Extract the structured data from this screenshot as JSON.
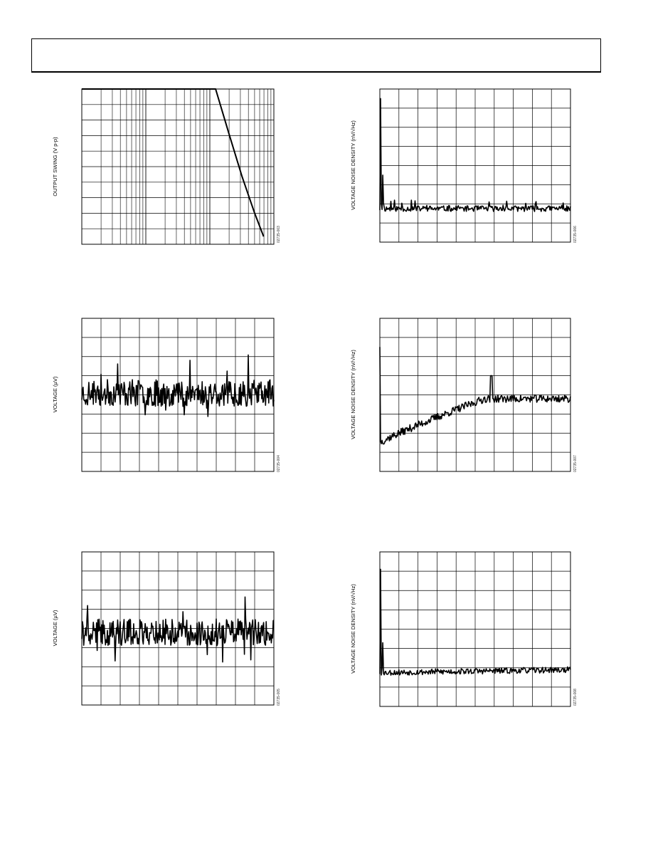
{
  "charts": [
    {
      "id": "c1",
      "type": "line",
      "ylabel": "OUTPUT SWING (V p-p)",
      "fig_id": "02735-003",
      "x_scale": "log",
      "grid": true,
      "x_decades": 3,
      "y_divisions": 10,
      "xlim": [
        0,
        3
      ],
      "ylim": [
        0,
        10
      ],
      "series": [
        {
          "x": [
            0,
            0.5,
            1,
            1.5,
            2.0,
            2.09,
            2.3,
            2.5,
            2.7,
            2.84
          ],
          "y": [
            10,
            10,
            10,
            10,
            10,
            10,
            7.1,
            4.4,
            2.0,
            0.5
          ]
        }
      ]
    },
    {
      "id": "c2",
      "type": "line",
      "ylabel": "VOLTAGE NOISE DENSITY (nV/√Hz)",
      "fig_id": "02735-006",
      "grid": true,
      "x_divisions": 10,
      "y_divisions": 8,
      "xlim": [
        0,
        10
      ],
      "ylim": [
        0,
        8
      ],
      "series": [
        {
          "name": "",
          "profile": "nd_flat",
          "seed": 11
        }
      ]
    },
    {
      "id": "c3",
      "type": "line",
      "ylabel": "VOLTAGE (µV)",
      "fig_id": "02735-004",
      "grid": true,
      "x_divisions": 10,
      "y_divisions": 8,
      "xlim": [
        0,
        10
      ],
      "ylim": [
        0,
        8
      ],
      "series": [
        {
          "name": "",
          "profile": "noise_time",
          "center": 4.1,
          "seed": 23
        }
      ]
    },
    {
      "id": "c4",
      "type": "line",
      "ylabel": "VOLTAGE NOISE DENSITY (nV/√Hz)",
      "fig_id": "02735-007",
      "grid": true,
      "x_divisions": 10,
      "y_divisions": 8,
      "xlim": [
        0,
        10
      ],
      "ylim": [
        0,
        8
      ],
      "series": [
        {
          "name": "",
          "profile": "nd_rising",
          "seed": 37
        }
      ]
    },
    {
      "id": "c5",
      "type": "line",
      "ylabel": "VOLTAGE (µV)",
      "fig_id": "02735-005",
      "grid": true,
      "x_divisions": 10,
      "y_divisions": 8,
      "xlim": [
        0,
        10
      ],
      "ylim": [
        0,
        8
      ],
      "series": [
        {
          "name": "",
          "profile": "noise_time",
          "center": 3.8,
          "seed": 41
        }
      ]
    },
    {
      "id": "c6",
      "type": "line",
      "ylabel": "VOLTAGE NOISE DENSITY (nV/√Hz)",
      "fig_id": "02735-008",
      "grid": true,
      "x_divisions": 10,
      "y_divisions": 8,
      "xlim": [
        0,
        10
      ],
      "ylim": [
        0,
        8
      ],
      "series": [
        {
          "name": "",
          "profile": "nd_flat_low",
          "seed": 53
        }
      ]
    }
  ]
}
